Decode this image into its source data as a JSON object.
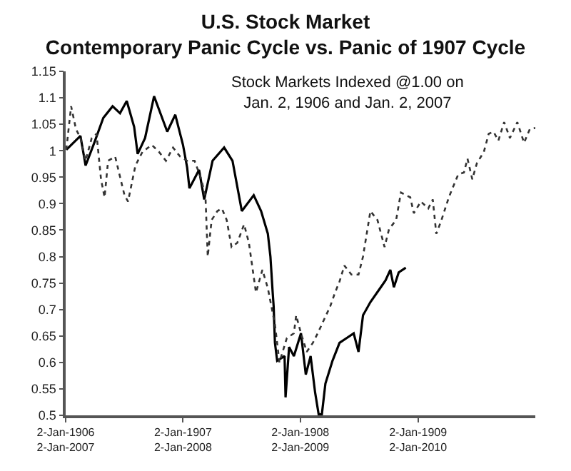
{
  "chart_data": {
    "type": "line",
    "title": "U.S. Stock Market\nContemporary Panic Cycle vs. Panic of 1907 Cycle",
    "subtitle": "Stock Markets Indexed @1.00 on\nJan. 2, 1906 and Jan. 2, 2007",
    "xlim": [
      "1906-01-02",
      "1910-01-02"
    ],
    "xticks": [
      {
        "value": "1906-01-02",
        "label": "2-Jan-1906\n2-Jan-2007"
      },
      {
        "value": "1907-01-02",
        "label": "2-Jan-1907\n2-Jan-2008"
      },
      {
        "value": "1908-01-02",
        "label": "2-Jan-1908\n2-Jan-2009"
      },
      {
        "value": "1909-01-02",
        "label": "2-Jan-1909\n2-Jan-2010"
      }
    ],
    "ylim": [
      0.5,
      1.15
    ],
    "yticks": [
      0.5,
      0.55,
      0.6,
      0.65,
      0.7,
      0.75,
      0.8,
      0.85,
      0.9,
      0.95,
      1,
      1.05,
      1.1,
      1.15
    ],
    "series": [
      {
        "color": "#000000",
        "line_style": "solid",
        "x": [
          "1906-01-04",
          "1906-02-17",
          "1906-03-05",
          "1906-04-01",
          "1906-04-29",
          "1906-05-28",
          "1906-06-20",
          "1906-07-11",
          "1906-08-03",
          "1906-08-14",
          "1906-09-06",
          "1906-10-04",
          "1906-10-26",
          "1906-11-14",
          "1906-12-09",
          "1907-01-02",
          "1907-01-15",
          "1907-01-22",
          "1907-02-21",
          "1907-03-09",
          "1907-04-04",
          "1907-05-10",
          "1907-06-05",
          "1907-07-04",
          "1907-08-10",
          "1907-09-02",
          "1907-09-23",
          "1907-10-01",
          "1907-10-08",
          "1907-10-11",
          "1907-10-15",
          "1907-10-22",
          "1907-11-14",
          "1907-11-17",
          "1907-11-28",
          "1907-12-13",
          "1908-01-04",
          "1908-01-19",
          "1908-02-03",
          "1908-02-17",
          "1908-02-28",
          "1908-03-09",
          "1908-03-20",
          "1908-04-11",
          "1908-05-03",
          "1908-05-25",
          "1908-06-16",
          "1908-07-01",
          "1908-07-15",
          "1908-08-07",
          "1908-09-06",
          "1908-09-23",
          "1908-10-08",
          "1908-10-19",
          "1908-11-03",
          "1908-11-25"
        ],
        "values": [
          1.002,
          1.028,
          0.972,
          1.015,
          1.062,
          1.084,
          1.071,
          1.094,
          1.045,
          0.994,
          1.024,
          1.103,
          1.067,
          1.036,
          1.068,
          1.011,
          0.968,
          0.929,
          0.964,
          0.908,
          0.981,
          1.006,
          0.981,
          0.886,
          0.916,
          0.886,
          0.843,
          0.8,
          0.732,
          0.706,
          0.637,
          0.603,
          0.612,
          0.534,
          0.629,
          0.612,
          0.655,
          0.577,
          0.612,
          0.543,
          0.502,
          0.502,
          0.56,
          0.603,
          0.637,
          0.646,
          0.655,
          0.62,
          0.689,
          0.714,
          0.74,
          0.755,
          0.775,
          0.742,
          0.77,
          0.779
        ]
      },
      {
        "color": "#333333",
        "line_style": "dotted",
        "x": [
          "1906-01-04",
          "1906-01-19",
          "1906-02-03",
          "1906-02-17",
          "1906-03-05",
          "1906-03-24",
          "1906-04-08",
          "1906-04-22",
          "1906-05-03",
          "1906-05-14",
          "1906-06-05",
          "1906-06-20",
          "1906-07-04",
          "1906-07-15",
          "1906-08-07",
          "1906-08-29",
          "1906-09-27",
          "1906-10-19",
          "1906-11-10",
          "1906-12-02",
          "1906-12-24",
          "1907-01-15",
          "1907-02-07",
          "1907-02-28",
          "1907-03-13",
          "1907-03-20",
          "1907-04-01",
          "1907-04-19",
          "1907-05-03",
          "1907-05-18",
          "1907-06-02",
          "1907-06-20",
          "1907-07-11",
          "1907-07-26",
          "1907-08-17",
          "1907-09-06",
          "1907-09-23",
          "1907-10-15",
          "1907-10-29",
          "1907-11-21",
          "1907-12-13",
          "1907-12-20",
          "1908-01-04",
          "1908-01-22",
          "1908-02-10",
          "1908-02-25",
          "1908-04-04",
          "1908-04-19",
          "1908-05-03",
          "1908-05-18",
          "1908-06-09",
          "1908-07-01",
          "1908-07-15",
          "1908-08-07",
          "1908-08-29",
          "1908-09-20",
          "1908-10-04",
          "1908-10-26",
          "1908-11-10",
          "1908-12-09",
          "1908-12-20",
          "1909-01-11",
          "1909-02-03",
          "1909-02-17",
          "1909-02-28",
          "1909-03-16",
          "1909-04-08",
          "1909-04-22",
          "1909-05-07",
          "1909-05-25",
          "1909-06-05",
          "1909-06-20",
          "1909-07-04",
          "1909-07-26",
          "1909-08-10",
          "1909-08-25",
          "1909-09-09",
          "1909-09-27",
          "1909-10-15",
          "1909-11-07",
          "1909-11-28",
          "1909-12-16",
          "1910-01-02"
        ],
        "values": [
          1.002,
          1.084,
          1.041,
          1.024,
          0.981,
          1.024,
          1.032,
          0.946,
          0.912,
          0.981,
          0.989,
          0.951,
          0.916,
          0.904,
          0.972,
          0.998,
          1.011,
          0.998,
          0.981,
          1.006,
          0.989,
          0.981,
          0.981,
          0.946,
          0.912,
          0.8,
          0.869,
          0.886,
          0.891,
          0.869,
          0.818,
          0.826,
          0.861,
          0.826,
          0.732,
          0.775,
          0.74,
          0.672,
          0.6,
          0.646,
          0.655,
          0.689,
          0.655,
          0.62,
          0.637,
          0.655,
          0.706,
          0.732,
          0.753,
          0.783,
          0.766,
          0.766,
          0.8,
          0.886,
          0.869,
          0.818,
          0.852,
          0.869,
          0.921,
          0.912,
          0.882,
          0.904,
          0.891,
          0.908,
          0.843,
          0.869,
          0.912,
          0.933,
          0.955,
          0.959,
          0.985,
          0.946,
          0.976,
          0.998,
          1.032,
          1.036,
          1.019,
          1.054,
          1.024,
          1.054,
          1.015,
          1.041,
          1.043
        ]
      }
    ]
  }
}
